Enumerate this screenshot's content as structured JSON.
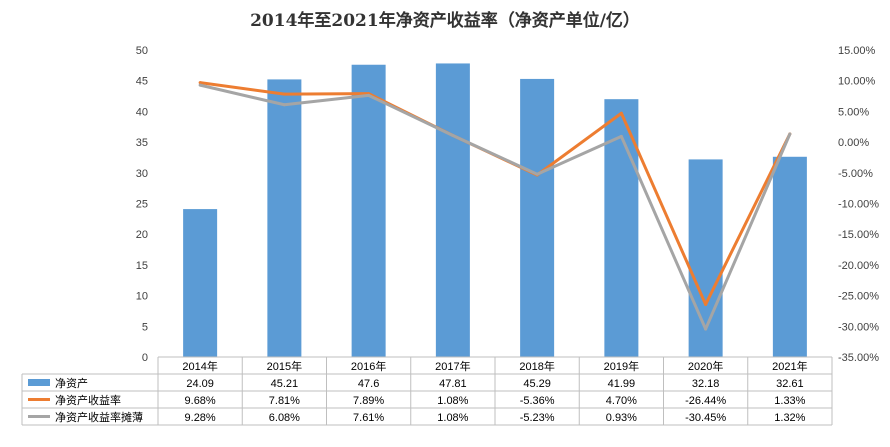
{
  "chart_data": {
    "type": "bar",
    "title": "2014年至2021年净资产收益率（净资产单位/亿）",
    "categories": [
      "2014年",
      "2015年",
      "2016年",
      "2017年",
      "2018年",
      "2019年",
      "2020年",
      "2021年"
    ],
    "series": [
      {
        "name": "净资产",
        "type": "bar",
        "axis": "left",
        "color": "#5B9BD5",
        "values": [
          24.09,
          45.21,
          47.6,
          47.81,
          45.29,
          41.99,
          32.18,
          32.61
        ],
        "labels": [
          "24.09",
          "45.21",
          "47.6",
          "47.81",
          "45.29",
          "41.99",
          "32.18",
          "32.61"
        ]
      },
      {
        "name": "净资产收益率",
        "type": "line",
        "axis": "right",
        "color": "#ED7D31",
        "values": [
          9.68,
          7.81,
          7.89,
          1.08,
          -5.36,
          4.7,
          -26.44,
          1.33
        ],
        "labels": [
          "9.68%",
          "7.81%",
          "7.89%",
          "1.08%",
          "-5.36%",
          "4.70%",
          "-26.44%",
          "1.33%"
        ]
      },
      {
        "name": "净资产收益率摊薄",
        "type": "line",
        "axis": "right",
        "color": "#A5A5A5",
        "values": [
          9.28,
          6.08,
          7.61,
          1.08,
          -5.23,
          0.93,
          -30.45,
          1.32
        ],
        "labels": [
          "9.28%",
          "6.08%",
          "7.61%",
          "1.08%",
          "-5.23%",
          "0.93%",
          "-30.45%",
          "1.32%"
        ]
      }
    ],
    "y_left": {
      "min": 0,
      "max": 50,
      "ticks": [
        "0",
        "5",
        "10",
        "15",
        "20",
        "25",
        "30",
        "35",
        "40",
        "45",
        "50"
      ]
    },
    "y_right": {
      "min": -35,
      "max": 15,
      "ticks": [
        "-35.00%",
        "-30.00%",
        "-25.00%",
        "-20.00%",
        "-15.00%",
        "-10.00%",
        "-5.00%",
        "0.00%",
        "5.00%",
        "10.00%",
        "15.00%"
      ]
    },
    "grid": false,
    "legend": "data-table"
  }
}
